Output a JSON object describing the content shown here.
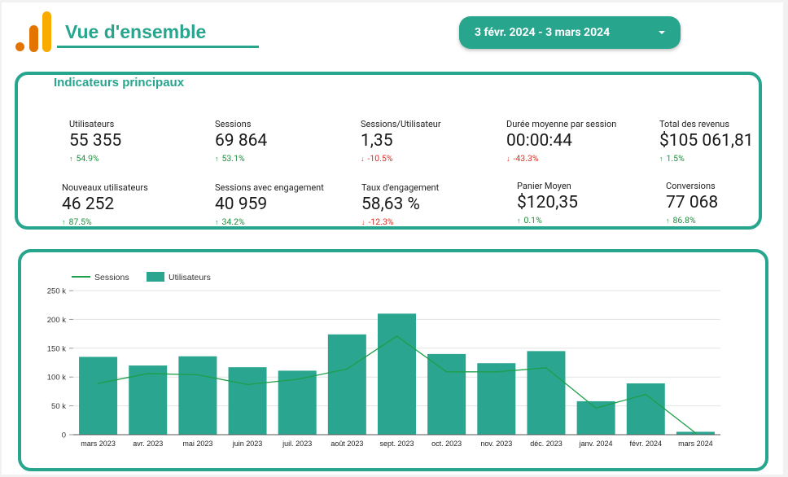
{
  "header": {
    "title": "Vue d'ensemble",
    "date_range": "3 févr. 2024 - 3 mars 2024",
    "accent_color": "#27a58d",
    "logo_icon": "analytics-logo-icon"
  },
  "kpi_panel": {
    "title": "Indicateurs principaux",
    "row1": [
      {
        "label": "Utilisateurs",
        "value": "55 355",
        "delta": "54.9%",
        "trend": "up"
      },
      {
        "label": "Sessions",
        "value": "69 864",
        "delta": "53.1%",
        "trend": "up"
      },
      {
        "label": "Sessions/Utilisateur",
        "value": "1,35",
        "delta": "-10.5%",
        "trend": "down"
      },
      {
        "label": "Durée moyenne par session",
        "value": "00:00:44",
        "delta": "-43.3%",
        "trend": "down"
      },
      {
        "label": "Total des revenus",
        "value": "$105 061,81",
        "delta": "1.5%",
        "trend": "up"
      }
    ],
    "row2": [
      {
        "label": "Nouveaux utilisateurs",
        "value": "46 252",
        "delta": "87.5%",
        "trend": "up"
      },
      {
        "label": "Sessions avec engagement",
        "value": "40 959",
        "delta": "34.2%",
        "trend": "up"
      },
      {
        "label": "Taux d'engagement",
        "value": "58,63 %",
        "delta": "-12.3%",
        "trend": "down"
      },
      {
        "label": "Panier Moyen",
        "value": "$120,35",
        "delta": "0.1%",
        "trend": "up"
      },
      {
        "label": "Conversions",
        "value": "77 068",
        "delta": "86.8%",
        "trend": "up"
      }
    ]
  },
  "chart_data": {
    "type": "bar",
    "categories": [
      "mars 2023",
      "avr. 2023",
      "mai 2023",
      "juin 2023",
      "juil. 2023",
      "août 2023",
      "sept. 2023",
      "oct. 2023",
      "nov. 2023",
      "déc. 2023",
      "janv. 2024",
      "févr. 2024",
      "mars 2024"
    ],
    "series": [
      {
        "name": "Utilisateurs",
        "kind": "bar",
        "color": "#2aa58f",
        "values": [
          135000,
          120000,
          136000,
          117000,
          111000,
          174000,
          210000,
          140000,
          124000,
          145000,
          58000,
          89000,
          5000
        ]
      },
      {
        "name": "Sessions",
        "kind": "line",
        "color": "#1e9e4a",
        "values": [
          89000,
          106000,
          104000,
          87000,
          96000,
          114000,
          171000,
          109000,
          109000,
          116000,
          46000,
          70000,
          3000
        ]
      }
    ],
    "legend": {
      "position": "top-left"
    },
    "yticks": [
      "0",
      "50 k",
      "100 k",
      "150 k",
      "200 k",
      "250 k"
    ],
    "ylim": [
      0,
      250000
    ],
    "grid": true,
    "xlabel": "",
    "ylabel": ""
  }
}
